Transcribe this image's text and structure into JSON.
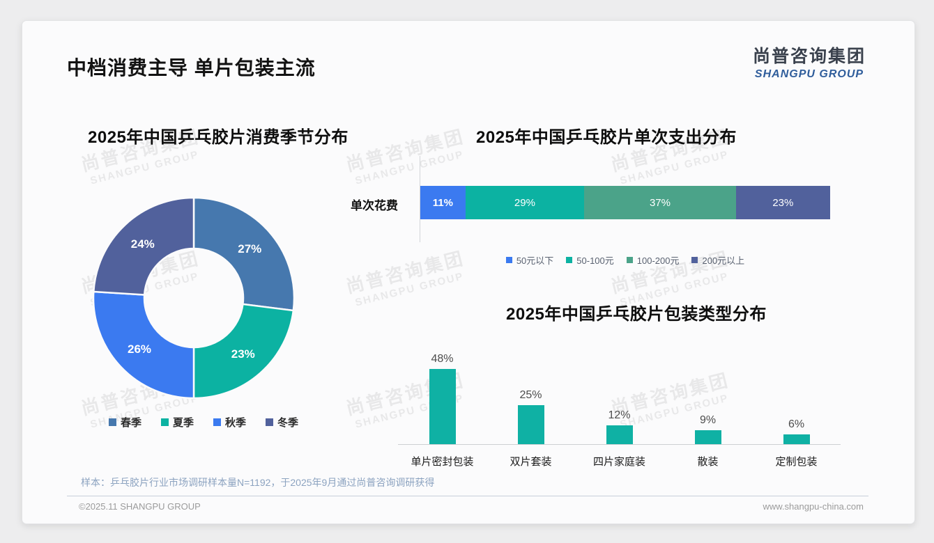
{
  "page": {
    "title": "中档消费主导 单片包装主流",
    "logo": {
      "cn": "尚普咨询集团",
      "en": "SHANGPU GROUP"
    },
    "watermark": {
      "cn": "尚普咨询集团",
      "en": "SHANGPU GROUP"
    },
    "footer": {
      "note": "样本：乒乓胶片行业市场调研样本量N=1192，于2025年9月通过尚普咨询调研获得",
      "copyright": "©2025.11 SHANGPU GROUP",
      "website": "www.shangpu-china.com"
    }
  },
  "colors": {
    "steel_blue": "#4678ae",
    "teal": "#0cb2a2",
    "bright_blue": "#3b7af0",
    "slate_blue": "#51619c",
    "sea_green": "#4ba389",
    "bar_teal": "#0fb1a4"
  },
  "chart_data": [
    {
      "type": "pie",
      "subtype": "donut",
      "title": "2025年中国乒乓胶片消费季节分布",
      "categories": [
        "春季",
        "夏季",
        "秋季",
        "冬季"
      ],
      "values": [
        27,
        23,
        26,
        24
      ],
      "labels": [
        "27%",
        "23%",
        "26%",
        "24%"
      ],
      "colors": [
        "#4678ae",
        "#0cb2a2",
        "#3b7af0",
        "#51619c"
      ],
      "start_angle_deg": 0,
      "direction": "clockwise",
      "legend_position": "bottom",
      "unit": "%"
    },
    {
      "type": "bar",
      "subtype": "horizontal-stacked",
      "title": "2025年中国乒乓胶片单次支出分布",
      "row_label": "单次花费",
      "series": [
        {
          "name": "50元以下",
          "value": 11,
          "color": "#3b7af0"
        },
        {
          "name": "50-100元",
          "value": 29,
          "color": "#0cb2a2"
        },
        {
          "name": "100-200元",
          "value": 37,
          "color": "#4ba389"
        },
        {
          "name": "200元以上",
          "value": 23,
          "color": "#51619c"
        }
      ],
      "legend_position": "bottom",
      "xlim": [
        0,
        100
      ],
      "unit": "%"
    },
    {
      "type": "bar",
      "subtype": "vertical",
      "title": "2025年中国乒乓胶片包装类型分布",
      "categories": [
        "单片密封包装",
        "双片套装",
        "四片家庭装",
        "散装",
        "定制包装"
      ],
      "values": [
        48,
        25,
        12,
        9,
        6
      ],
      "labels": [
        "48%",
        "25%",
        "12%",
        "9%",
        "6%"
      ],
      "bar_color": "#0fb1a4",
      "grid": false,
      "unit": "%"
    }
  ]
}
